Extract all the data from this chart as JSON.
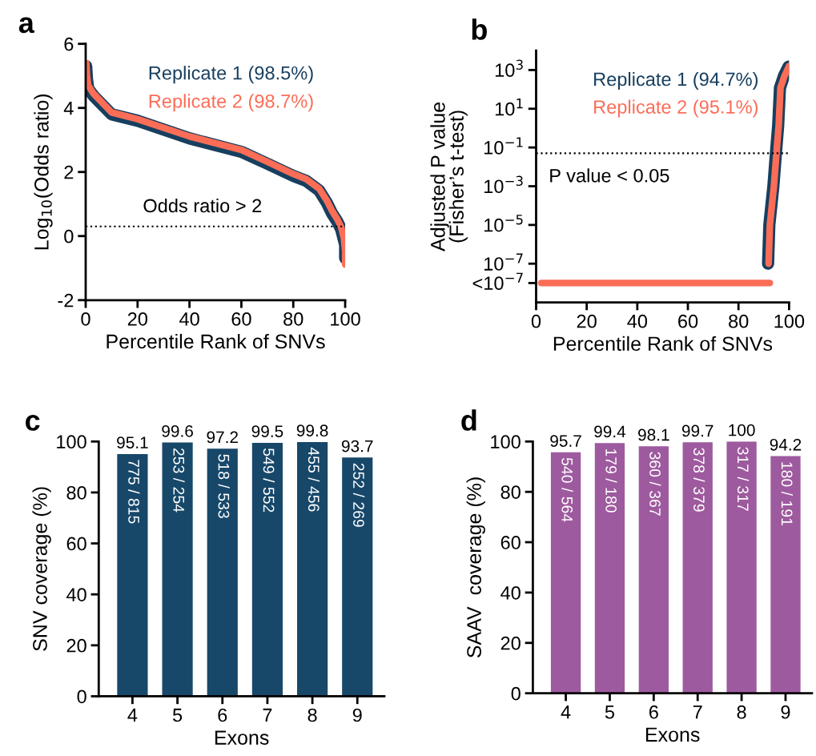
{
  "chart_data": [
    {
      "type": "line",
      "title": "a",
      "xlabel": "Percentile Rank of SNVs",
      "ylabel": "Log$_{10}$(Odds ratio)",
      "xlim": [
        0,
        100
      ],
      "xticks": [
        0,
        20,
        40,
        60,
        80,
        100
      ],
      "ylim": [
        -2,
        6
      ],
      "yticks": [
        -2,
        0,
        2,
        4,
        6
      ],
      "grid": false,
      "legend": false,
      "line_style": "solid",
      "series": [
        {
          "name": "Replicate 1 (98.5%)",
          "color": "#173f5f",
          "x": [
            0.2,
            0.5,
            1,
            3,
            10,
            20,
            40,
            60,
            70,
            80,
            85,
            90,
            93,
            95,
            97,
            98.5,
            99.5,
            100,
            100
          ],
          "values": [
            5.3,
            4.9,
            4.6,
            4.38,
            3.8,
            3.6,
            3.05,
            2.63,
            2.26,
            1.88,
            1.72,
            1.42,
            1.03,
            0.7,
            0.45,
            0.2,
            -0.12,
            -0.27,
            -0.69
          ]
        },
        {
          "name": "Replicate 2 (98.7%)",
          "color": "#fb6d57",
          "x": [
            0.2,
            0.5,
            1,
            3,
            10,
            20,
            40,
            60,
            70,
            80,
            85,
            90,
            93,
            95,
            97,
            98.5,
            99.5,
            100,
            100
          ],
          "values": [
            5.4,
            5.0,
            4.7,
            4.45,
            3.86,
            3.65,
            3.11,
            2.69,
            2.32,
            1.94,
            1.78,
            1.48,
            1.1,
            0.78,
            0.52,
            0.27,
            -0.06,
            -0.47,
            -0.89
          ]
        }
      ],
      "ref_lines": [
        {
          "axis": "y",
          "value": 0.3,
          "label": "Odds ratio > 2",
          "color": "#000000",
          "line_style": "dotted"
        }
      ]
    },
    {
      "type": "line",
      "title": "b",
      "xlabel": "Percentile Rank of SNVs",
      "ylabel": "Adjusted P value\n(Fisher’s t-test)",
      "log": true,
      "xlim": [
        0,
        100
      ],
      "xticks": [
        0,
        20,
        40,
        60,
        80,
        100
      ],
      "ylim": [
        1e-09,
        10000
      ],
      "yticks": [
        {
          "value": 1e-08,
          "label": "<10$^{−7}$"
        },
        {
          "value": 1e-07,
          "label": "10$^{−7}$"
        },
        {
          "value": 1e-05,
          "label": "10$^{−5}$"
        },
        {
          "value": 0.001,
          "label": "10$^{−3}$"
        },
        {
          "value": 0.1,
          "label": "10$^{−1}$"
        },
        {
          "value": 10,
          "label": "10$^{1}$"
        },
        {
          "value": 1000,
          "label": "10$^{3}$"
        }
      ],
      "grid": false,
      "legend": false,
      "line_style": "solid",
      "series": [
        {
          "name": "Replicate 1 (94.7%)",
          "color": "#173f5f",
          "x": [
            91.7,
            92.2,
            93.8,
            94.8,
            95.7,
            96.4,
            98.0,
            99.8
          ],
          "values": [
            1e-07,
            1e-05,
            0.001,
            0.05,
            1.4,
            120,
            500,
            1500
          ]
        },
        {
          "color": "#fb6d57",
          "x": [
            2,
            92.4
          ],
          "values": [
            1e-08,
            1e-08
          ]
        },
        {
          "name": "Replicate 2 (95.1%)",
          "color": "#fb6d57",
          "x": [
            91.9,
            92.4,
            94.0,
            95.0,
            95.9,
            96.6,
            98.2,
            100
          ],
          "values": [
            1e-07,
            1e-05,
            0.001,
            0.05,
            1.4,
            120,
            500,
            1600
          ]
        }
      ],
      "ref_lines": [
        {
          "axis": "y",
          "value": 0.05,
          "label": "P value < 0.05",
          "color": "#000000",
          "line_style": "dotted"
        }
      ]
    },
    {
      "type": "bar",
      "title": "c",
      "xlabel": "Exons",
      "ylabel": "SNV coverage (%)",
      "categories": [
        "4",
        "5",
        "6",
        "7",
        "8",
        "9"
      ],
      "values": [
        95.1,
        99.6,
        97.2,
        99.5,
        99.8,
        93.7
      ],
      "color": "#17486a",
      "ylim": [
        0,
        100
      ],
      "yticks": [
        0,
        20,
        40,
        60,
        80,
        100
      ],
      "grid": false,
      "data_labels": true,
      "annotations": [
        {
          "text": "775 / 815",
          "x": "4",
          "y": 95.1
        },
        {
          "text": "253 / 254",
          "x": "5",
          "y": 99.6
        },
        {
          "text": "518 / 533",
          "x": "6",
          "y": 97.2
        },
        {
          "text": "549 / 552",
          "x": "7",
          "y": 99.5
        },
        {
          "text": "455 / 456",
          "x": "8",
          "y": 99.8
        },
        {
          "text": "252 / 269",
          "x": "9",
          "y": 93.7
        }
      ]
    },
    {
      "type": "bar",
      "title": "d",
      "xlabel": "Exons",
      "ylabel": "SAAV  coverage (%)",
      "categories": [
        "4",
        "5",
        "6",
        "7",
        "8",
        "9"
      ],
      "values": [
        95.7,
        99.4,
        98.1,
        99.7,
        100,
        94.2
      ],
      "color": "#9e5a9e",
      "ylim": [
        0,
        100
      ],
      "yticks": [
        0,
        20,
        40,
        60,
        80,
        100
      ],
      "grid": false,
      "data_labels": true,
      "annotations": [
        {
          "text": "540 / 564",
          "x": "4",
          "y": 95.7
        },
        {
          "text": "179 / 180",
          "x": "5",
          "y": 99.4
        },
        {
          "text": "360 / 367",
          "x": "6",
          "y": 98.1
        },
        {
          "text": "378 / 379",
          "x": "7",
          "y": 99.7
        },
        {
          "text": "317 / 317",
          "x": "8",
          "y": 100
        },
        {
          "text": "180 / 191",
          "x": "9",
          "y": 94.2
        }
      ]
    }
  ]
}
